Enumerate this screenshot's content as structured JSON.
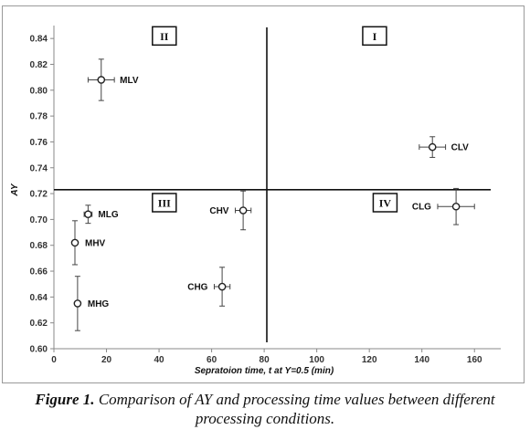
{
  "chart_data": {
    "type": "scatter",
    "xlabel": "Sepratoion time, t at Y=0.5 (min)",
    "ylabel": "AY",
    "xlim": [
      0,
      170
    ],
    "ylim": [
      0.6,
      0.85
    ],
    "xticks": [
      "0",
      "20",
      "40",
      "60",
      "80",
      "100",
      "120",
      "140",
      "160"
    ],
    "yticks": [
      "0.60",
      "0.62",
      "0.64",
      "0.66",
      "0.68",
      "0.70",
      "0.72",
      "0.74",
      "0.76",
      "0.78",
      "0.80",
      "0.82",
      "0.84"
    ],
    "divider_x": 81,
    "divider_y": 0.723,
    "quadrants": [
      {
        "label": "I",
        "x": 122,
        "y": 0.842
      },
      {
        "label": "II",
        "x": 42,
        "y": 0.842
      },
      {
        "label": "III",
        "x": 42,
        "y": 0.713
      },
      {
        "label": "IV",
        "x": 126,
        "y": 0.713
      }
    ],
    "points": [
      {
        "label": "MLV",
        "x": 18,
        "y": 0.808,
        "xerr": 5,
        "yerr": 0.016,
        "label_pos": "right"
      },
      {
        "label": "CLV",
        "x": 144,
        "y": 0.756,
        "xerr": 5,
        "yerr": 0.008,
        "label_pos": "right"
      },
      {
        "label": "CLG",
        "x": 153,
        "y": 0.71,
        "xerr": 7,
        "yerr": 0.014,
        "label_pos": "left"
      },
      {
        "label": "CHV",
        "x": 72,
        "y": 0.707,
        "xerr": 3,
        "yerr": 0.015,
        "label_pos": "left"
      },
      {
        "label": "MLG",
        "x": 13,
        "y": 0.704,
        "xerr": 1.5,
        "yerr": 0.007,
        "label_pos": "right"
      },
      {
        "label": "MHV",
        "x": 8,
        "y": 0.682,
        "xerr": 0,
        "yerr": 0.017,
        "label_pos": "right"
      },
      {
        "label": "CHG",
        "x": 64,
        "y": 0.648,
        "xerr": 3,
        "yerr": 0.015,
        "label_pos": "left"
      },
      {
        "label": "MHG",
        "x": 9,
        "y": 0.635,
        "xerr": 0,
        "yerr": 0.021,
        "label_pos": "right"
      }
    ]
  },
  "caption": {
    "label": "Figure 1.",
    "text": "Comparison of AY and processing time values between different processing conditions."
  }
}
